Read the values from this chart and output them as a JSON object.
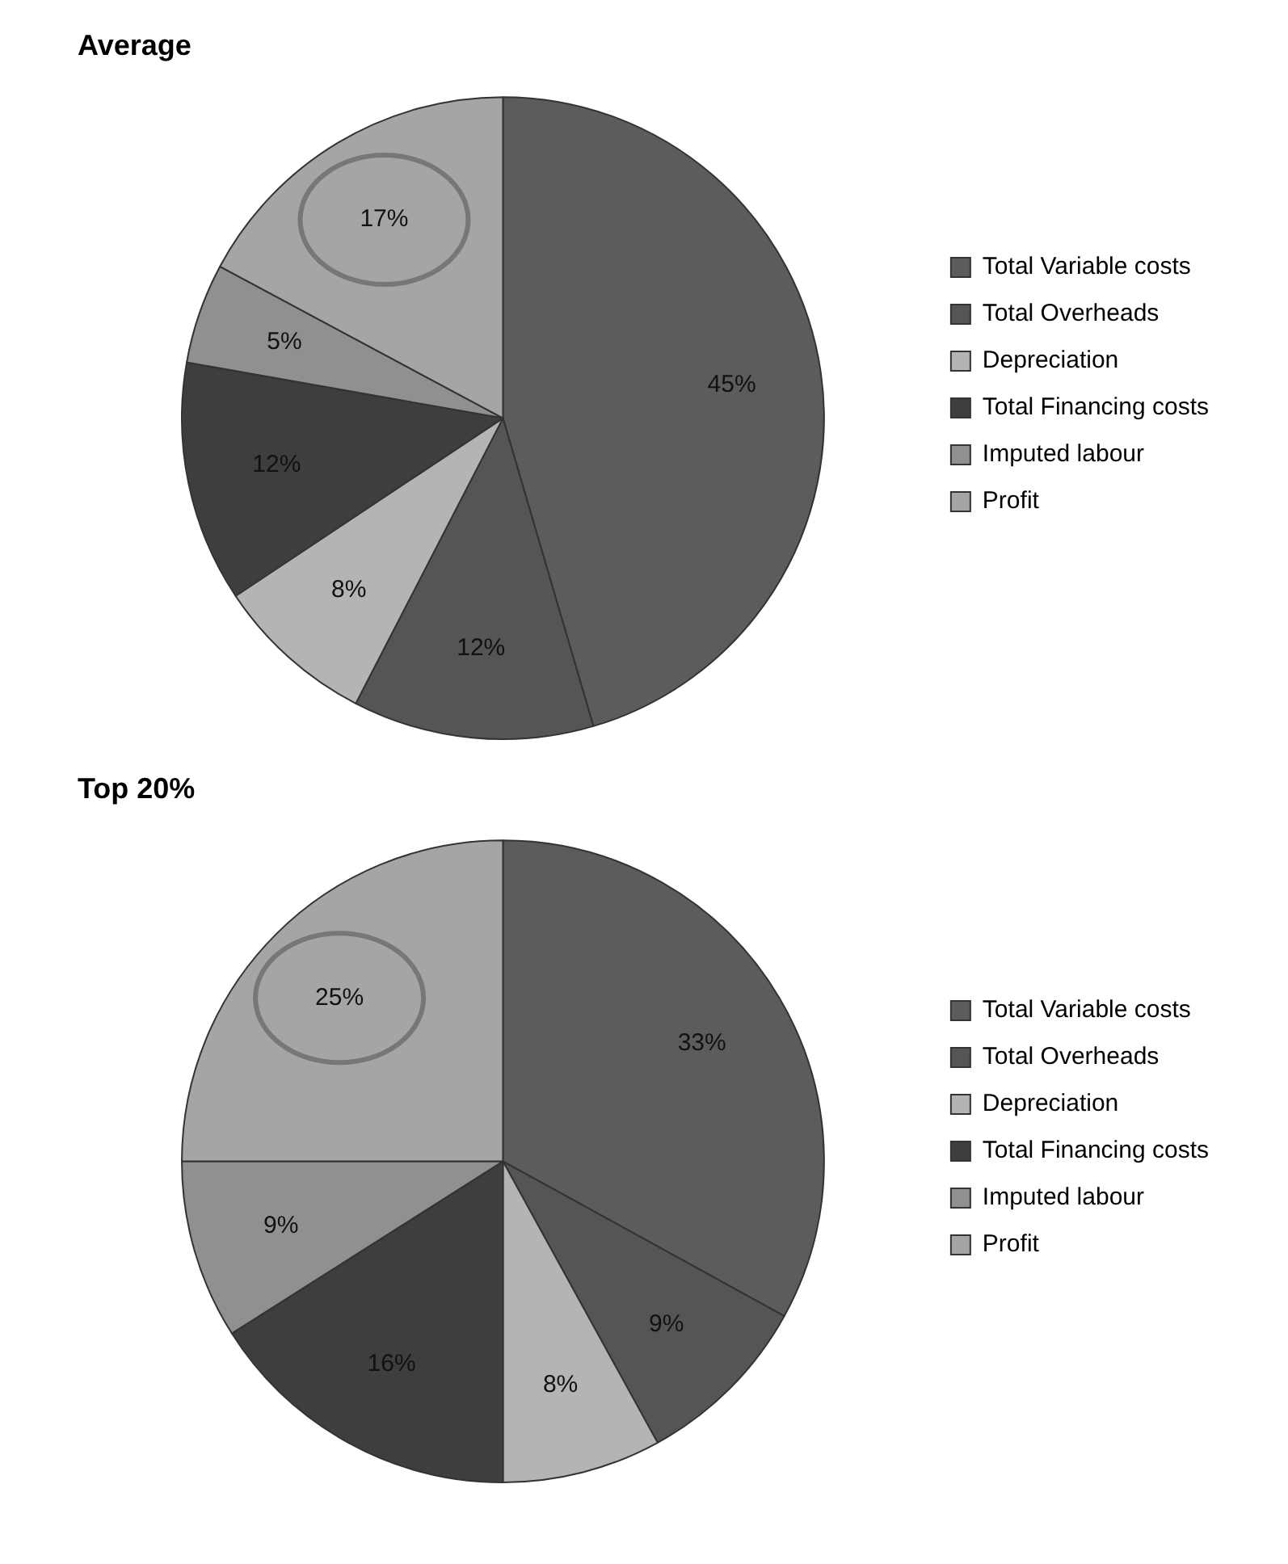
{
  "chart_data": [
    {
      "type": "pie",
      "title": "Average",
      "categories": [
        "Total Variable costs",
        "Total Overheads",
        "Depreciation",
        "Total Financing costs",
        "Imputed labour",
        "Profit"
      ],
      "values": [
        45,
        12,
        8,
        12,
        5,
        17
      ],
      "value_labels": [
        "45%",
        "12%",
        "8%",
        "12%",
        "5%",
        "17%"
      ],
      "colors": [
        "#5c5c5c",
        "#555555",
        "#b4b4b4",
        "#3e3e3e",
        "#909090",
        "#a5a5a5"
      ],
      "legend": "right"
    },
    {
      "type": "pie",
      "title": "Top 20%",
      "categories": [
        "Total Variable costs",
        "Total Overheads",
        "Depreciation",
        "Total Financing costs",
        "Imputed labour",
        "Profit"
      ],
      "values": [
        33,
        9,
        8,
        16,
        9,
        25
      ],
      "value_labels": [
        "33%",
        "9%",
        "8%",
        "16%",
        "9%",
        "25%"
      ],
      "colors": [
        "#5c5c5c",
        "#555555",
        "#b4b4b4",
        "#3e3e3e",
        "#909090",
        "#a5a5a5"
      ],
      "legend": "right"
    }
  ]
}
